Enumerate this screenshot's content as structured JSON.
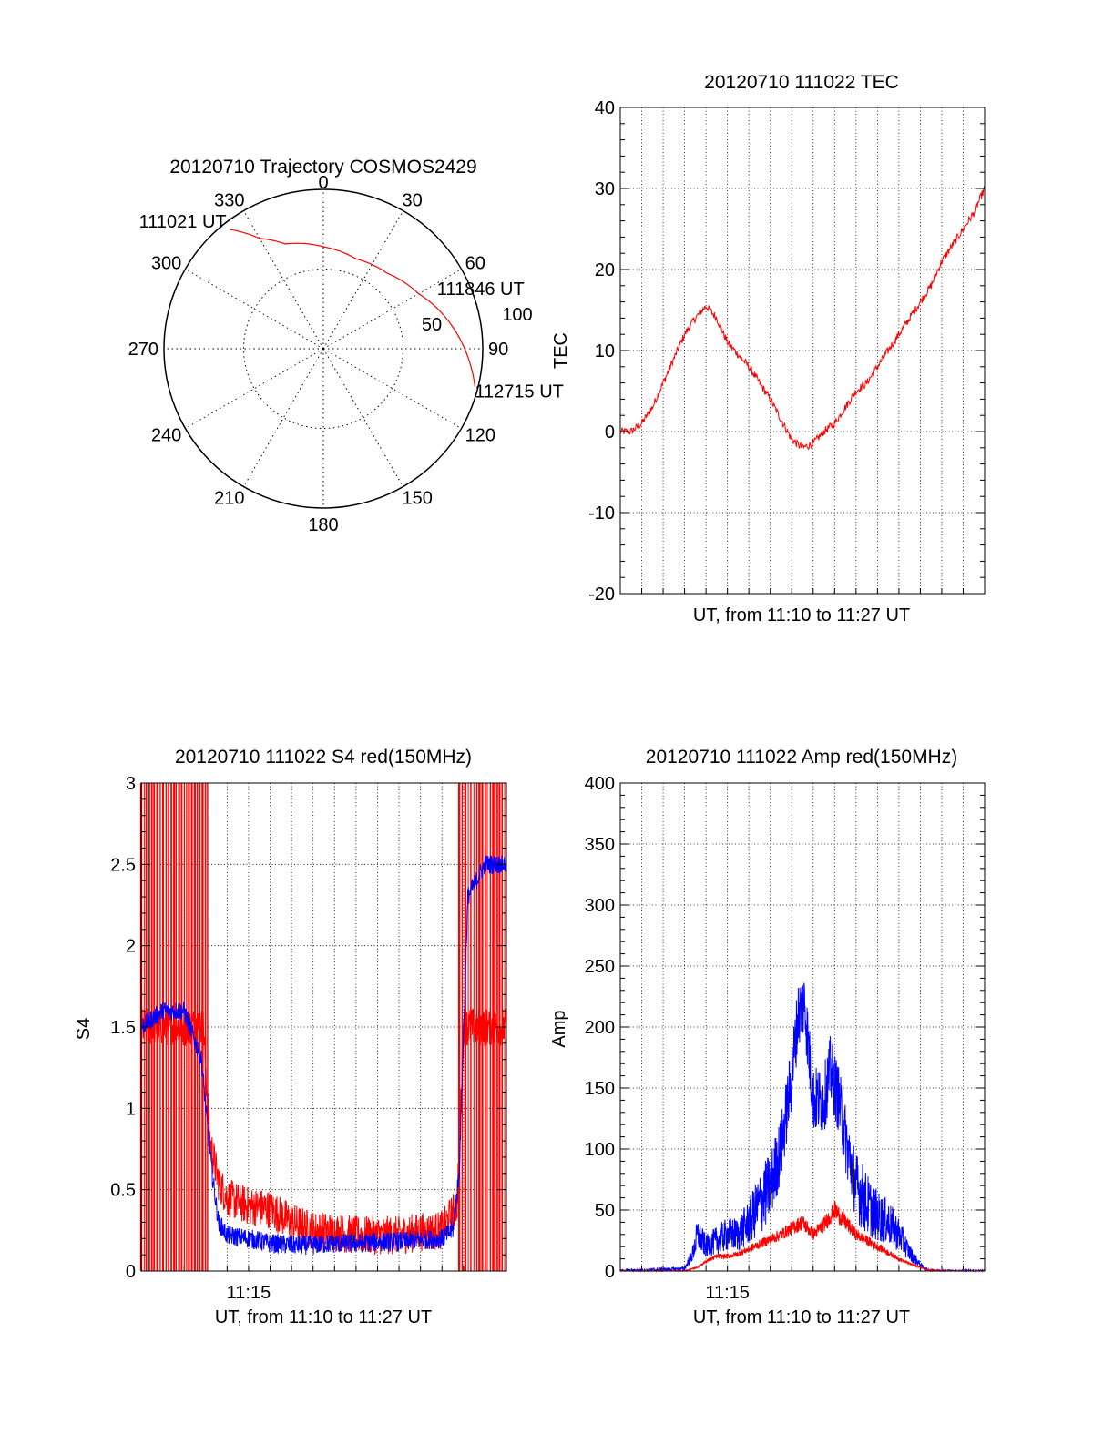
{
  "chart_data": [
    {
      "id": "polar",
      "type": "polar",
      "title": "20120710 Trajectory COSMOS2429",
      "azimuth_labels": [
        "0",
        "30",
        "60",
        "90",
        "120",
        "150",
        "180",
        "210",
        "240",
        "270",
        "300",
        "330"
      ],
      "azimuths": [
        0,
        30,
        60,
        90,
        120,
        150,
        180,
        210,
        240,
        270,
        300,
        330
      ],
      "radial_labels": [
        "50",
        "100"
      ],
      "radial_values": [
        50,
        100
      ],
      "series": [
        {
          "color": "#ff0000",
          "points": [
            {
              "az": 322,
              "r": 95
            },
            {
              "az": 330,
              "r": 80
            },
            {
              "az": 340,
              "r": 70
            },
            {
              "az": 0,
              "r": 64
            },
            {
              "az": 20,
              "r": 60
            },
            {
              "az": 40,
              "r": 62
            },
            {
              "az": 60,
              "r": 69
            },
            {
              "az": 80,
              "r": 82
            },
            {
              "az": 95,
              "r": 92
            },
            {
              "az": 104,
              "r": 98
            }
          ]
        }
      ],
      "annotations": [
        {
          "text": "111021 UT",
          "az": 322,
          "r": 95
        },
        {
          "text": "111846 UT",
          "az": 40,
          "r": 62
        },
        {
          "text": "112715 UT",
          "az": 104,
          "r": 98
        }
      ]
    },
    {
      "id": "tec",
      "type": "line",
      "title": "20120710 111022 TEC",
      "xlabel": "UT, from 11:10 to 11:27 UT",
      "ylabel": "TEC",
      "xlim": [
        0,
        17
      ],
      "ylim": [
        -20,
        40
      ],
      "yticks": [
        -20,
        -10,
        0,
        10,
        20,
        30,
        40
      ],
      "grid": true,
      "series": [
        {
          "color": "#ff0000",
          "noise": 0.5,
          "x": [
            0,
            0.5,
            1.0,
            1.5,
            2.0,
            2.5,
            3.0,
            3.5,
            4.0,
            4.5,
            5.0,
            6.0,
            7.0,
            8.0,
            8.5,
            9.0,
            9.5,
            10.0,
            10.5,
            11.0,
            11.5,
            12.0,
            12.5,
            13.0,
            13.5,
            14.0,
            14.5,
            15.0,
            15.5,
            16.0,
            16.5,
            17.0
          ],
          "y": [
            0,
            0,
            1,
            3,
            6,
            9,
            12,
            14,
            15.5,
            14,
            11,
            8,
            4,
            -1,
            -2,
            -1.5,
            0,
            1,
            3,
            5,
            6,
            8,
            10,
            12,
            14,
            16,
            18,
            21,
            23,
            25,
            27,
            30
          ]
        }
      ]
    },
    {
      "id": "s4",
      "type": "line",
      "title": "20120710 111022 S4 red(150MHz)",
      "xlabel": "UT, from 11:10 to 11:27 UT",
      "ylabel": "S4",
      "xlim": [
        0,
        17
      ],
      "ylim": [
        0,
        3
      ],
      "yticks": [
        0,
        0.5,
        1,
        1.5,
        2,
        2.5,
        3
      ],
      "ytick_labels": [
        "0",
        "0.5",
        "1",
        "1.5",
        "2",
        "2.5",
        "3"
      ],
      "xtick_label": "11:15",
      "xtick_value": 5,
      "grid": true,
      "series": [
        {
          "color": "#ff0000",
          "x": [
            0,
            2.9,
            3.2,
            3.6,
            4.0,
            5.0,
            6.0,
            7.0,
            8.0,
            9.0,
            10.0,
            11.0,
            12.0,
            13.0,
            14.0,
            14.7,
            15.0,
            17.0
          ],
          "y": [
            1.5,
            1.5,
            0.8,
            0.55,
            0.45,
            0.4,
            0.38,
            0.3,
            0.25,
            0.24,
            0.22,
            0.22,
            0.22,
            0.24,
            0.25,
            0.4,
            1.5,
            1.5
          ],
          "spike_ranges": [
            [
              0,
              3.2
            ],
            [
              14.8,
              17
            ]
          ],
          "noise": 0.12
        },
        {
          "color": "#0000ff",
          "x": [
            0,
            1,
            2,
            2.8,
            3.3,
            3.6,
            4,
            5,
            6,
            7,
            8,
            9,
            10,
            11,
            12,
            13,
            14,
            14.5,
            14.8,
            15.2,
            16,
            17
          ],
          "y": [
            1.5,
            1.6,
            1.6,
            1.3,
            0.6,
            0.3,
            0.22,
            0.2,
            0.17,
            0.16,
            0.16,
            0.17,
            0.17,
            0.18,
            0.18,
            0.19,
            0.2,
            0.25,
            0.6,
            2.3,
            2.5,
            2.5
          ],
          "noise": 0.06
        }
      ]
    },
    {
      "id": "amp",
      "type": "line",
      "title": "20120710 111022 Amp red(150MHz)",
      "xlabel": "UT, from 11:10 to 11:27 UT",
      "ylabel": "Amp",
      "xlim": [
        0,
        17
      ],
      "ylim": [
        0,
        400
      ],
      "yticks": [
        0,
        50,
        100,
        150,
        200,
        250,
        300,
        350,
        400
      ],
      "xtick_label": "11:15",
      "xtick_value": 5,
      "grid": true,
      "series": [
        {
          "color": "#0000ff",
          "x": [
            0,
            3,
            3.4,
            3.6,
            4,
            4.5,
            5,
            5.5,
            6,
            6.5,
            7,
            7.5,
            8,
            8.3,
            8.6,
            9.0,
            9.5,
            9.8,
            10.2,
            10.6,
            11,
            11.5,
            12,
            12.5,
            13,
            13.5,
            14,
            14.3,
            15,
            17
          ],
          "y": [
            0,
            2,
            15,
            30,
            20,
            25,
            30,
            30,
            40,
            55,
            70,
            100,
            160,
            210,
            220,
            140,
            140,
            165,
            140,
            100,
            70,
            55,
            45,
            40,
            30,
            15,
            5,
            1,
            0,
            0
          ],
          "noise": 28
        },
        {
          "color": "#ff0000",
          "x": [
            0,
            3,
            3.6,
            4,
            4.5,
            5,
            5.5,
            6,
            6.5,
            7,
            7.5,
            8,
            8.5,
            9,
            9.5,
            10,
            10.5,
            11,
            11.5,
            12,
            12.5,
            13,
            13.5,
            14,
            14.3,
            15,
            17
          ],
          "y": [
            0,
            0,
            3,
            8,
            12,
            12,
            14,
            18,
            22,
            26,
            30,
            35,
            40,
            30,
            38,
            50,
            40,
            30,
            25,
            20,
            15,
            10,
            6,
            3,
            1,
            0,
            0
          ],
          "noise": 10
        }
      ]
    }
  ]
}
